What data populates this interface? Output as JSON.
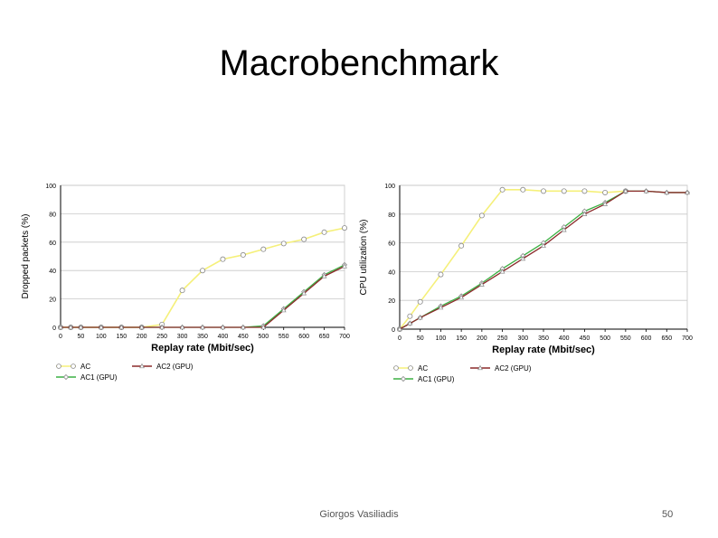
{
  "slide": {
    "title": "Macrobenchmark",
    "author": "Giorgos Vasiliadis",
    "page": "50"
  },
  "colors": {
    "AC": "#f5f07a",
    "AC1 (GPU)": "#3cb043",
    "AC2 (GPU)": "#8b2a2a",
    "marker": "#888888",
    "grid": "#c8c8c8"
  },
  "chart_data": [
    {
      "type": "line",
      "ylabel": "Dropped packets (%)",
      "xlabel": "Replay rate (Mbit/sec)",
      "xlim": [
        0,
        700
      ],
      "ylim": [
        0,
        100
      ],
      "xticks": [
        0,
        50,
        100,
        150,
        200,
        250,
        300,
        350,
        400,
        450,
        500,
        550,
        600,
        650,
        700
      ],
      "yticks": [
        0,
        20,
        40,
        60,
        80,
        100
      ],
      "grid": true,
      "legend": "below",
      "series": [
        {
          "name": "AC",
          "x": [
            0,
            25,
            50,
            100,
            150,
            200,
            250,
            300,
            350,
            400,
            450,
            500,
            550,
            600,
            650,
            700
          ],
          "values": [
            0,
            0,
            0,
            0,
            0,
            0,
            2,
            26,
            40,
            48,
            51,
            55,
            59,
            62,
            67,
            70
          ]
        },
        {
          "name": "AC1 (GPU)",
          "x": [
            0,
            25,
            50,
            100,
            150,
            200,
            250,
            300,
            350,
            400,
            450,
            500,
            550,
            600,
            650,
            700
          ],
          "values": [
            0,
            0,
            0,
            0,
            0,
            0,
            0,
            0,
            0,
            0,
            0,
            1,
            13,
            25,
            37,
            44
          ]
        },
        {
          "name": "AC2 (GPU)",
          "x": [
            0,
            25,
            50,
            100,
            150,
            200,
            250,
            300,
            350,
            400,
            450,
            500,
            550,
            600,
            650,
            700
          ],
          "values": [
            0,
            0,
            0,
            0,
            0,
            0,
            0,
            0,
            0,
            0,
            0,
            0,
            12,
            24,
            36,
            43
          ]
        }
      ]
    },
    {
      "type": "line",
      "ylabel": "CPU utilization (%)",
      "xlabel": "Replay rate (Mbit/sec)",
      "xlim": [
        0,
        700
      ],
      "ylim": [
        0,
        100
      ],
      "xticks": [
        0,
        50,
        100,
        150,
        200,
        250,
        300,
        350,
        400,
        450,
        500,
        550,
        600,
        650,
        700
      ],
      "yticks": [
        0,
        20,
        40,
        60,
        80,
        100
      ],
      "grid": true,
      "legend": "below",
      "series": [
        {
          "name": "AC",
          "x": [
            0,
            25,
            50,
            100,
            150,
            200,
            250,
            300,
            350,
            400,
            450,
            500,
            550
          ],
          "values": [
            0,
            9,
            19,
            38,
            58,
            79,
            97,
            97,
            96,
            96,
            96,
            95,
            96
          ]
        },
        {
          "name": "AC1 (GPU)",
          "x": [
            0,
            25,
            50,
            100,
            150,
            200,
            250,
            300,
            350,
            400,
            450,
            500,
            550,
            600,
            650,
            700
          ],
          "values": [
            0,
            4,
            8,
            16,
            23,
            32,
            42,
            51,
            60,
            71,
            82,
            88,
            96,
            96,
            95,
            95
          ]
        },
        {
          "name": "AC2 (GPU)",
          "x": [
            0,
            25,
            50,
            100,
            150,
            200,
            250,
            300,
            350,
            400,
            450,
            500,
            550,
            600,
            650,
            700
          ],
          "values": [
            0,
            4,
            8,
            15,
            22,
            31,
            40,
            49,
            58,
            69,
            80,
            87,
            96,
            96,
            95,
            95
          ]
        }
      ]
    }
  ]
}
